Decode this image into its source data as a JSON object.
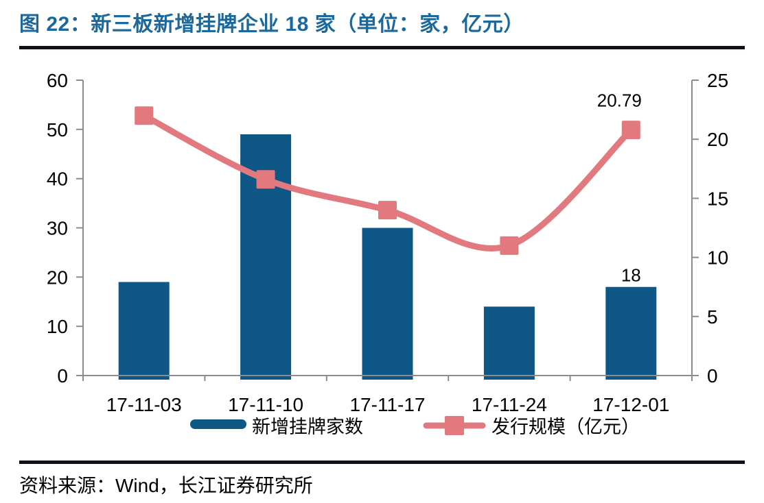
{
  "title": "图 22：新三板新增挂牌企业 18 家（单位：家，亿元）",
  "source": "资料来源：Wind，长江证券研究所",
  "colors": {
    "title": "#1b699c",
    "bar": "#0e5787",
    "line": "#e2797f",
    "axis": "#8c8c8c",
    "rule": "#10101a",
    "text": "#000000"
  },
  "chart_data": {
    "type": "bar",
    "subtype": "combo-bar-line",
    "categories": [
      "17-11-03",
      "17-11-10",
      "17-11-17",
      "17-11-24",
      "17-12-01"
    ],
    "series": [
      {
        "name": "新增挂牌家数",
        "type": "bar",
        "axis": "left",
        "color": "#0e5787",
        "values": [
          19,
          49,
          30,
          14,
          18
        ],
        "data_labels": {
          "4": "18"
        }
      },
      {
        "name": "发行规模（亿元）",
        "type": "line",
        "marker": "square",
        "axis": "right",
        "color": "#e2797f",
        "values": [
          22,
          16.6,
          14,
          11,
          20.79
        ],
        "data_labels": {
          "4": "20.79"
        }
      }
    ],
    "left_axis": {
      "min": 0,
      "max": 60,
      "step": 10,
      "tick_labels": [
        "0",
        "10",
        "20",
        "30",
        "40",
        "50",
        "60"
      ]
    },
    "right_axis": {
      "min": 0,
      "max": 25,
      "step": 5,
      "tick_labels": [
        "0",
        "5",
        "10",
        "15",
        "20",
        "25"
      ]
    },
    "grid": false,
    "legend_position": "bottom"
  }
}
